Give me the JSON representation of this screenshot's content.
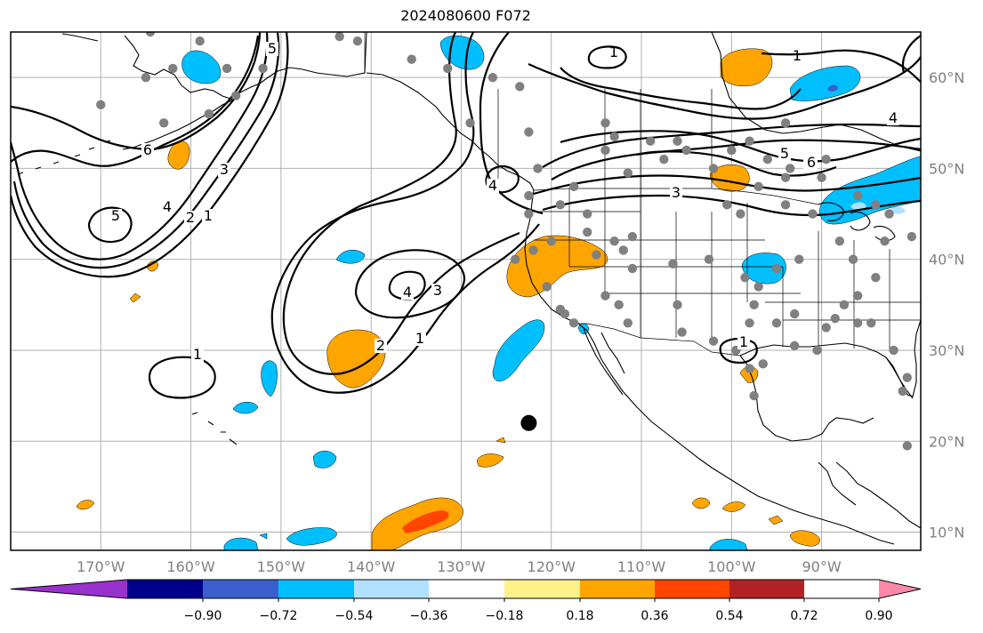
{
  "title": "2024080600 F072",
  "map": {
    "projection": "plate-carree",
    "lon_range": [
      -180,
      -79
    ],
    "lat_range": [
      8,
      65
    ],
    "gridlines": true,
    "ocean_color": "#ffffff",
    "coast_color": "#000000"
  },
  "lon_ticks": [
    "170°W",
    "160°W",
    "150°W",
    "140°W",
    "130°W",
    "120°W",
    "110°W",
    "100°W",
    "90°W"
  ],
  "lat_ticks": [
    "10°N",
    "20°N",
    "30°N",
    "40°N",
    "50°N",
    "60°N"
  ],
  "colorbar": {
    "colors": [
      "#9932cc",
      "#00008b",
      "#3a5fcd",
      "#00bfff",
      "#b0e2ff",
      "#ffffff",
      "#fff08a",
      "#ffa500",
      "#ff4500",
      "#b22222",
      "#ff88aa"
    ],
    "tick_labels": [
      "−0.90",
      "−0.72",
      "−0.54",
      "−0.36",
      "−0.18",
      "0.18",
      "0.36",
      "0.54",
      "0.72",
      "0.90"
    ],
    "extend": "both"
  },
  "contour_labels": [
    "5",
    "6",
    "5",
    "4",
    "2",
    "1",
    "3",
    "1",
    "6",
    "4",
    "5",
    "6",
    "3",
    "4",
    "3",
    "2",
    "1",
    "1",
    "1",
    "4"
  ],
  "marker": {
    "lon": -122.5,
    "lat": 22,
    "color": "#000000"
  },
  "station_color": "#808080",
  "stations": [
    [
      -164.5,
      65
    ],
    [
      -159,
      64
    ],
    [
      -156,
      61
    ],
    [
      -162,
      61
    ],
    [
      -165,
      60
    ],
    [
      -170,
      57
    ],
    [
      -152,
      61
    ],
    [
      -163,
      55
    ],
    [
      -143.5,
      64.5
    ],
    [
      -141.5,
      64
    ],
    [
      -135.5,
      62
    ],
    [
      -131.5,
      61
    ],
    [
      -126.5,
      60
    ],
    [
      -123.5,
      59
    ],
    [
      -129,
      55
    ],
    [
      -122.5,
      54
    ],
    [
      -121.5,
      50
    ],
    [
      -114,
      55
    ],
    [
      -113,
      53.5
    ],
    [
      -114,
      52
    ],
    [
      -111.5,
      49.5
    ],
    [
      -109,
      53
    ],
    [
      -107.5,
      51
    ],
    [
      -106,
      53
    ],
    [
      -105,
      52
    ],
    [
      -100,
      52
    ],
    [
      -98,
      53
    ],
    [
      -94,
      55
    ],
    [
      -96,
      51
    ],
    [
      -93.5,
      50
    ],
    [
      -89.5,
      51
    ],
    [
      -90,
      49
    ],
    [
      -97,
      48
    ],
    [
      -102,
      50
    ],
    [
      -100.5,
      46
    ],
    [
      -99,
      45
    ],
    [
      -94,
      49
    ],
    [
      -94,
      46
    ],
    [
      -91,
      45
    ],
    [
      -86,
      47
    ],
    [
      -84,
      46
    ],
    [
      -82.5,
      45
    ],
    [
      -80,
      42.5
    ],
    [
      -83,
      42
    ],
    [
      -88,
      42
    ],
    [
      -86.5,
      40
    ],
    [
      -92.5,
      40
    ],
    [
      -95,
      39
    ],
    [
      -98.5,
      38
    ],
    [
      -102.5,
      40
    ],
    [
      -106.5,
      39.5
    ],
    [
      -111,
      42.5
    ],
    [
      -113,
      42
    ],
    [
      -116,
      43
    ],
    [
      -120,
      42
    ],
    [
      -122,
      41
    ],
    [
      -124,
      40
    ],
    [
      -122.5,
      45
    ],
    [
      -122.5,
      47
    ],
    [
      -117.5,
      48
    ],
    [
      -116,
      45
    ],
    [
      -119,
      46
    ],
    [
      -115,
      40.5
    ],
    [
      -112,
      41
    ],
    [
      -111,
      39
    ],
    [
      -114,
      36
    ],
    [
      -112.5,
      35
    ],
    [
      -111.5,
      33
    ],
    [
      -106,
      35
    ],
    [
      -105.5,
      32
    ],
    [
      -102,
      31
    ],
    [
      -99.5,
      30
    ],
    [
      -98,
      33
    ],
    [
      -97.5,
      35
    ],
    [
      -97,
      37
    ],
    [
      -95,
      33
    ],
    [
      -93,
      34
    ],
    [
      -93,
      30.5
    ],
    [
      -90.5,
      30
    ],
    [
      -89.5,
      32.5
    ],
    [
      -88.5,
      33.5
    ],
    [
      -87.5,
      35
    ],
    [
      -86,
      36
    ],
    [
      -86,
      33
    ],
    [
      -84.5,
      33
    ],
    [
      -82,
      30
    ],
    [
      -80.5,
      27
    ],
    [
      -81,
      25.5
    ],
    [
      -80.5,
      19.5
    ],
    [
      -84,
      38
    ],
    [
      -98,
      28
    ],
    [
      -97.5,
      25
    ],
    [
      -96.5,
      28.5
    ],
    [
      -118.5,
      34
    ],
    [
      -119,
      34.5
    ],
    [
      -117.5,
      33
    ],
    [
      -120.5,
      37
    ],
    [
      -155,
      58
    ],
    [
      -158,
      56
    ]
  ]
}
